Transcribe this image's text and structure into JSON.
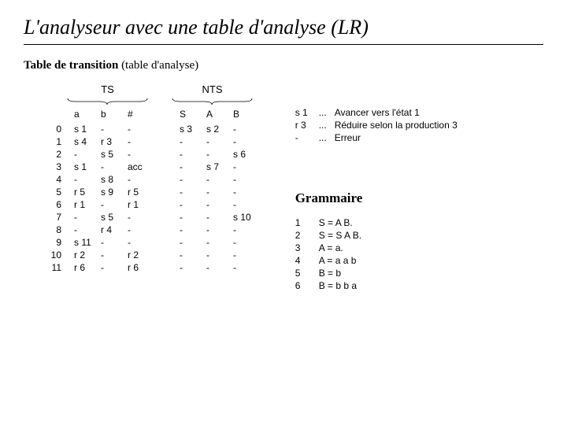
{
  "title": "L'analyseur avec une table d'analyse (LR)",
  "subtitle_bold": "Table de transition",
  "subtitle_rest": " (table d'analyse)",
  "group_ts": "TS",
  "group_nts": "NTS",
  "columns": [
    "",
    "a",
    "b",
    "#",
    "",
    "S",
    "A",
    "B"
  ],
  "rows": [
    [
      "0",
      "s 1",
      "-",
      "-",
      "",
      "s 3",
      "s 2",
      "-"
    ],
    [
      "1",
      "s 4",
      "r 3",
      "-",
      "",
      "-",
      "-",
      "-"
    ],
    [
      "2",
      "-",
      "s 5",
      "-",
      "",
      "-",
      "-",
      "s 6"
    ],
    [
      "3",
      "s 1",
      "-",
      "acc",
      "",
      "-",
      "s 7",
      "-"
    ],
    [
      "4",
      "-",
      "s 8",
      "-",
      "",
      "-",
      "-",
      "-"
    ],
    [
      "5",
      "r 5",
      "s 9",
      "r 5",
      "",
      "-",
      "-",
      "-"
    ],
    [
      "6",
      "r 1",
      "-",
      "r 1",
      "",
      "-",
      "-",
      "-"
    ],
    [
      "7",
      "-",
      "s 5",
      "-",
      "",
      "-",
      "-",
      "s 10"
    ],
    [
      "8",
      "-",
      "r 4",
      "-",
      "",
      "-",
      "-",
      "-"
    ],
    [
      "9",
      "s 11",
      "-",
      "-",
      "",
      "-",
      "-",
      "-"
    ],
    [
      "10",
      "r 2",
      "-",
      "r 2",
      "",
      "-",
      "-",
      "-"
    ],
    [
      "11",
      "r 6",
      "-",
      "r 6",
      "",
      "-",
      "-",
      "-"
    ]
  ],
  "legend": [
    {
      "key": "s 1",
      "dots": "...",
      "desc": "Avancer vers l'état 1"
    },
    {
      "key": "r 3",
      "dots": "...",
      "desc": "Réduire selon la production 3"
    },
    {
      "key": "-",
      "dots": "...",
      "desc": "Erreur"
    }
  ],
  "grammar_title": "Grammaire",
  "grammar": [
    {
      "n": "1",
      "rule": "S = A B."
    },
    {
      "n": "2",
      "rule": "S = S A B."
    },
    {
      "n": "3",
      "rule": "A = a."
    },
    {
      "n": "4",
      "rule": "A = a a b"
    },
    {
      "n": "5",
      "rule": "B = b"
    },
    {
      "n": "6",
      "rule": "B = b b a"
    }
  ],
  "colors": {
    "text": "#000000",
    "bg": "#ffffff"
  }
}
